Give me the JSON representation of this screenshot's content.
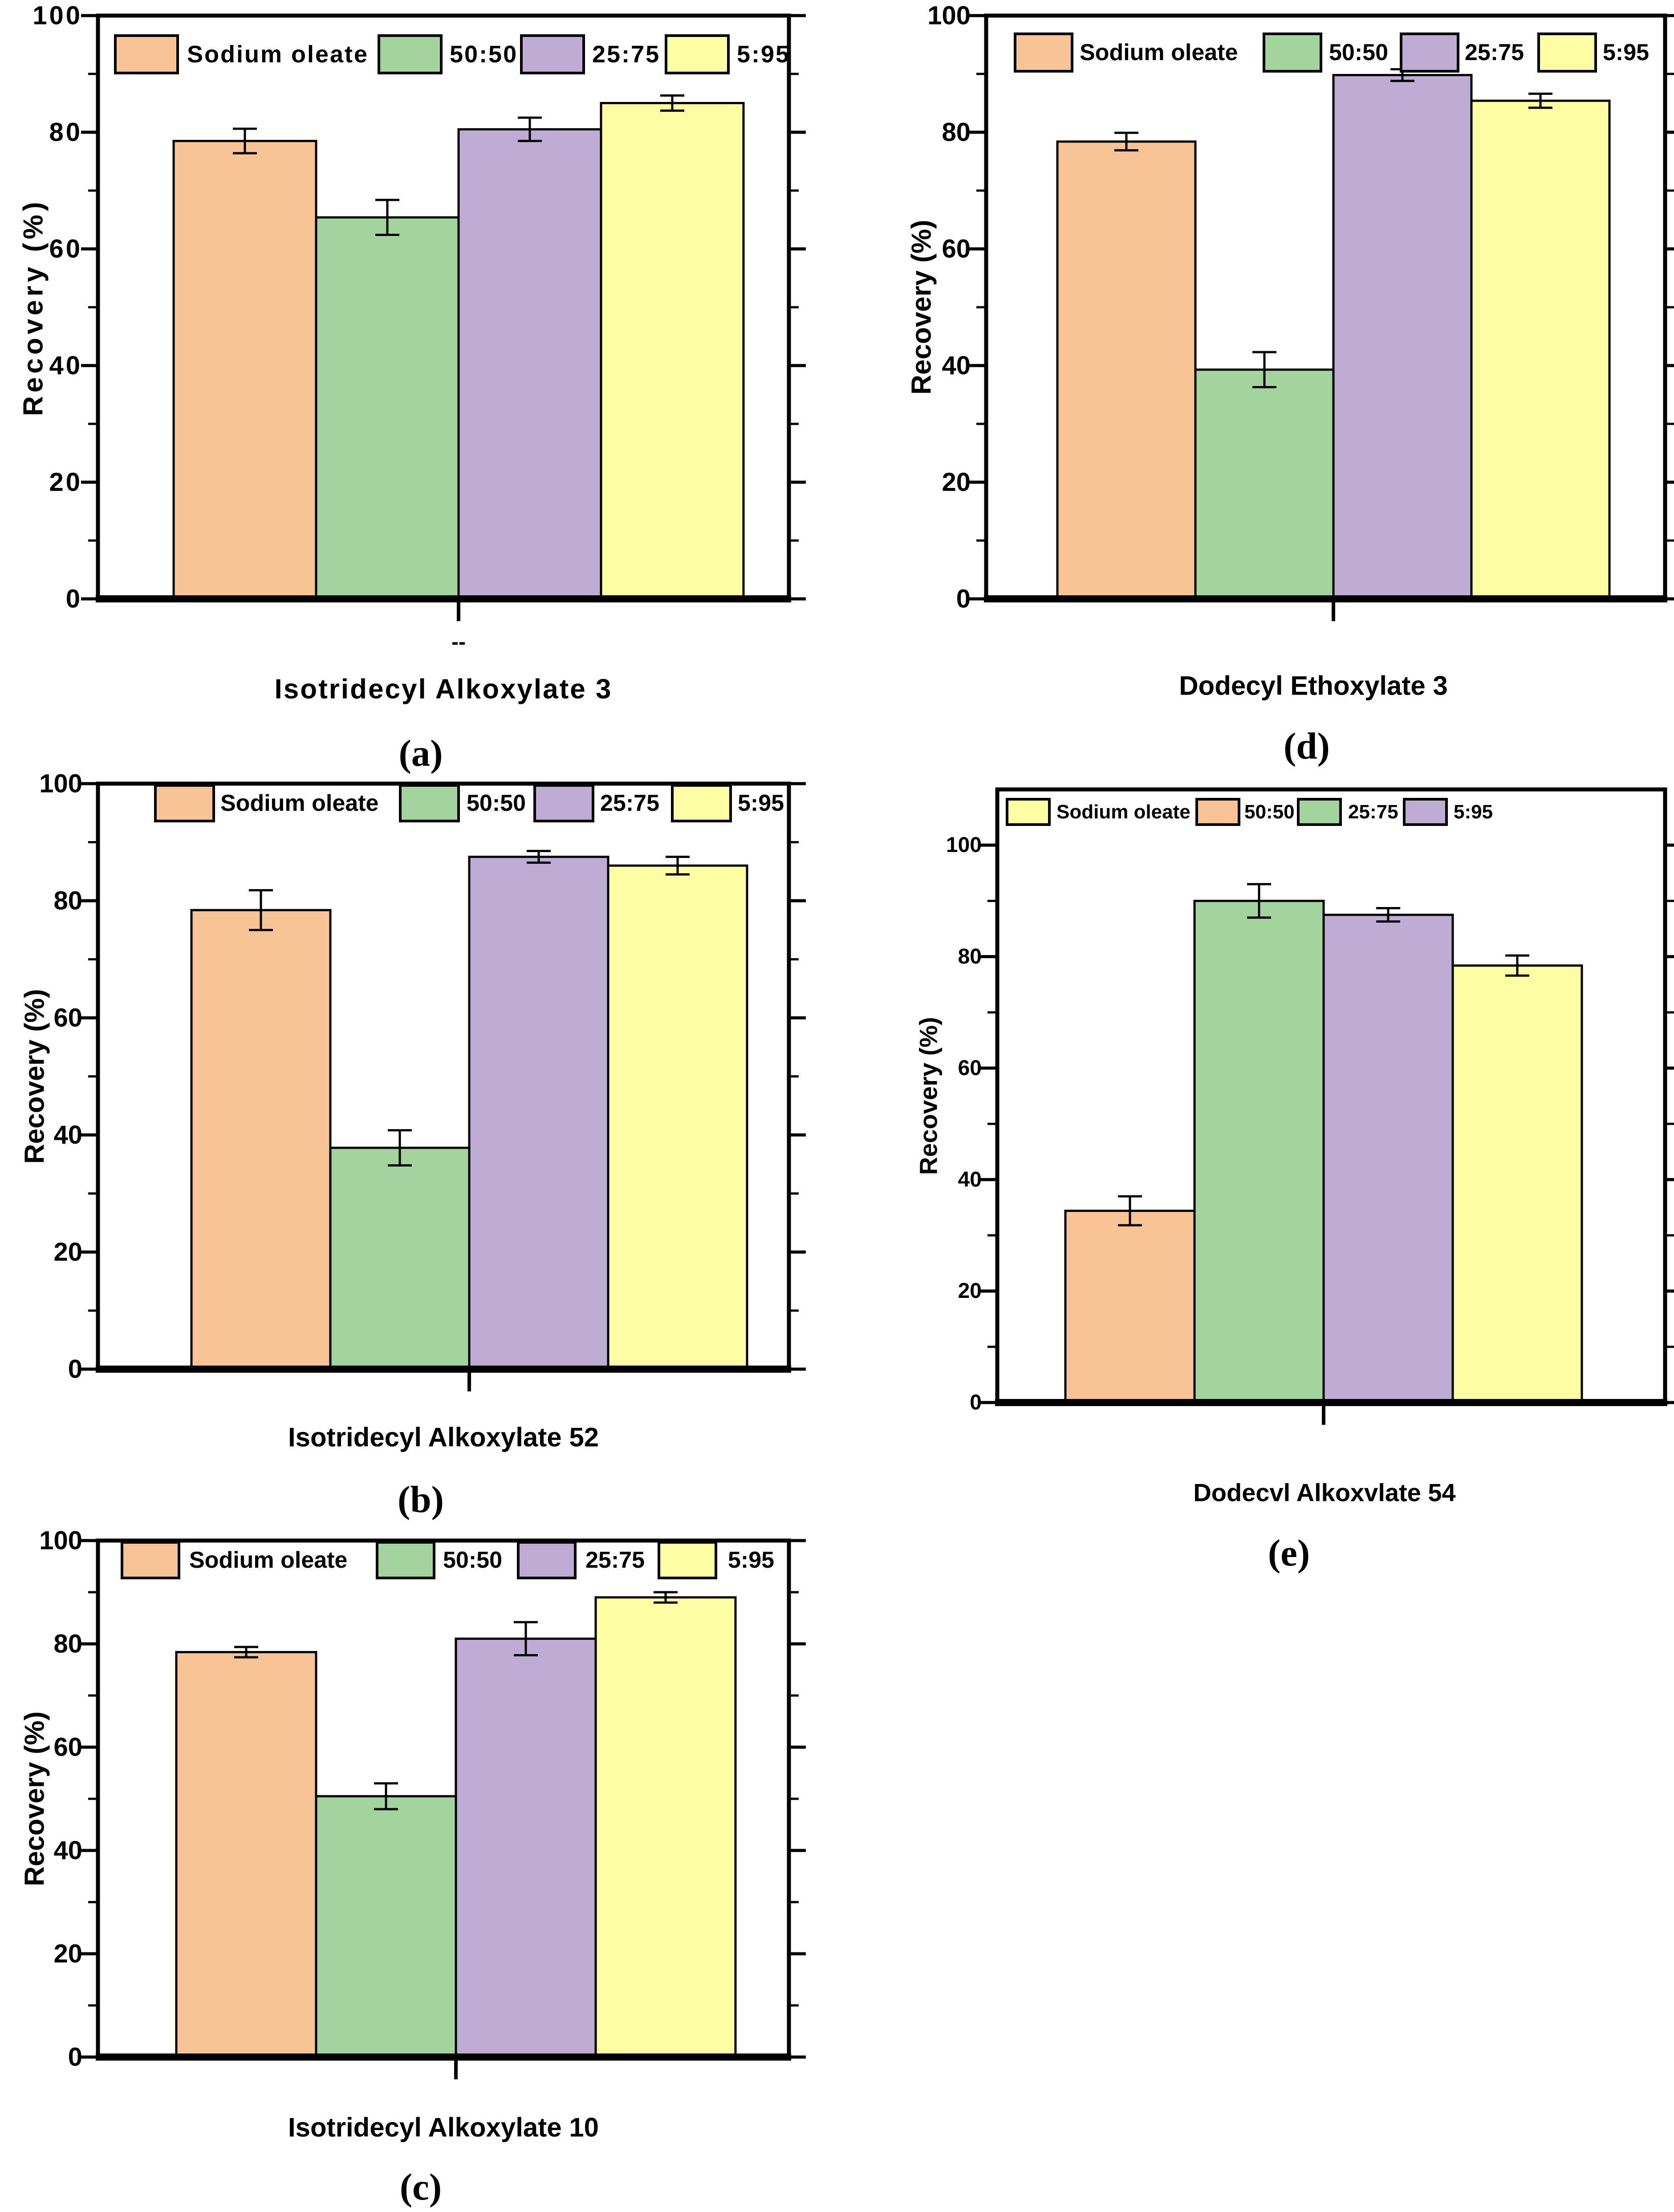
{
  "figure": {
    "background": "#ffffff",
    "palette": {
      "orange": "#F8C395",
      "green": "#A3D49E",
      "purple": "#BEACD4",
      "yellow": "#FDFDA4",
      "outline": "#000000"
    }
  },
  "chart_data": [
    {
      "id": "a",
      "type": "bar",
      "panel_letter": "(a)",
      "title": "Isotridecyl Alkoxylate 3",
      "x_tick_label": "--",
      "ylabel": "Recovery (%)",
      "ylim": [
        0,
        100
      ],
      "yticks": [
        0,
        20,
        40,
        60,
        80,
        100
      ],
      "minor_yticks": [
        10,
        30,
        50,
        70,
        90
      ],
      "grid": "off",
      "legend_position": "top-inside",
      "legend": [
        {
          "label": "Sodium oleate",
          "color": "orange"
        },
        {
          "label": "50:50",
          "color": "green"
        },
        {
          "label": "25:75",
          "color": "purple"
        },
        {
          "label": "5:95",
          "color": "yellow"
        }
      ],
      "bars": [
        {
          "label": "Sodium oleate",
          "color": "orange",
          "value": 78.5,
          "error": 2.1
        },
        {
          "label": "50:50",
          "color": "green",
          "value": 65.4,
          "error": 3.0
        },
        {
          "label": "25:75",
          "color": "purple",
          "value": 80.5,
          "error": 2.0
        },
        {
          "label": "5:95",
          "color": "yellow",
          "value": 85.0,
          "error": 1.3
        }
      ]
    },
    {
      "id": "b",
      "type": "bar",
      "panel_letter": "(b)",
      "title": "Isotridecyl Alkoxylate 52",
      "x_tick_label": "",
      "ylabel": "Recovery (%)",
      "ylim": [
        0,
        100
      ],
      "yticks": [
        0,
        20,
        40,
        60,
        80,
        100
      ],
      "minor_yticks": [
        10,
        30,
        50,
        70,
        90
      ],
      "grid": "off",
      "legend_position": "top-inside",
      "legend": [
        {
          "label": "Sodium oleate",
          "color": "orange"
        },
        {
          "label": "50:50",
          "color": "green"
        },
        {
          "label": "25:75",
          "color": "purple"
        },
        {
          "label": "5:95",
          "color": "yellow"
        }
      ],
      "bars": [
        {
          "label": "Sodium oleate",
          "color": "orange",
          "value": 78.4,
          "error": 3.4
        },
        {
          "label": "50:50",
          "color": "green",
          "value": 37.8,
          "error": 3.0
        },
        {
          "label": "25:75",
          "color": "purple",
          "value": 87.5,
          "error": 1.0
        },
        {
          "label": "5:95",
          "color": "yellow",
          "value": 86.0,
          "error": 1.5
        }
      ]
    },
    {
      "id": "c",
      "type": "bar",
      "panel_letter": "(c)",
      "title": "Isotridecyl Alkoxylate 10",
      "x_tick_label": "",
      "ylabel": "Recovery (%)",
      "ylim": [
        0,
        100
      ],
      "yticks": [
        0,
        20,
        40,
        60,
        80,
        100
      ],
      "minor_yticks": [
        10,
        30,
        50,
        70,
        90
      ],
      "grid": "off",
      "legend_position": "top-inside",
      "legend": [
        {
          "label": "Sodium oleate",
          "color": "orange"
        },
        {
          "label": "50:50",
          "color": "green"
        },
        {
          "label": "25:75",
          "color": "purple"
        },
        {
          "label": "5:95",
          "color": "yellow"
        }
      ],
      "bars": [
        {
          "label": "Sodium oleate",
          "color": "orange",
          "value": 78.4,
          "error": 1.0
        },
        {
          "label": "50:50",
          "color": "green",
          "value": 50.5,
          "error": 2.5
        },
        {
          "label": "25:75",
          "color": "purple",
          "value": 81.0,
          "error": 3.2
        },
        {
          "label": "5:95",
          "color": "yellow",
          "value": 89.0,
          "error": 1.0
        }
      ]
    },
    {
      "id": "d",
      "type": "bar",
      "panel_letter": "(d)",
      "title": "Dodecyl Ethoxylate 3",
      "x_tick_label": "",
      "ylabel": "Recovery (%)",
      "ylim": [
        0,
        100
      ],
      "yticks": [
        0,
        20,
        40,
        60,
        80,
        100
      ],
      "minor_yticks": [
        10,
        30,
        50,
        70,
        90
      ],
      "grid": "off",
      "legend_position": "top-inside",
      "legend": [
        {
          "label": "Sodium oleate",
          "color": "orange"
        },
        {
          "label": "50:50",
          "color": "green"
        },
        {
          "label": "25:75",
          "color": "purple"
        },
        {
          "label": "5:95",
          "color": "yellow"
        }
      ],
      "bars": [
        {
          "label": "Sodium oleate",
          "color": "orange",
          "value": 78.4,
          "error": 1.5
        },
        {
          "label": "50:50",
          "color": "green",
          "value": 39.3,
          "error": 3.0
        },
        {
          "label": "25:75",
          "color": "purple",
          "value": 89.8,
          "error": 1.0
        },
        {
          "label": "5:95",
          "color": "yellow",
          "value": 85.4,
          "error": 1.2
        }
      ]
    },
    {
      "id": "e",
      "type": "bar",
      "panel_letter": "(e)",
      "title": "Dodecvl Alkoxvlate 54",
      "x_tick_label": "",
      "ylabel": "Recovery (%)",
      "ylim": [
        0,
        110
      ],
      "yticks": [
        0,
        20,
        40,
        60,
        80,
        100
      ],
      "minor_yticks": [
        10,
        30,
        50,
        70,
        90
      ],
      "grid": "off",
      "legend_position": "top-inside",
      "legend": [
        {
          "label": "Sodium oleate",
          "color": "yellow"
        },
        {
          "label": "50:50",
          "color": "orange"
        },
        {
          "label": "25:75",
          "color": "green"
        },
        {
          "label": "5:95",
          "color": "purple"
        }
      ],
      "bars": [
        {
          "label": "50:50",
          "color": "orange",
          "value": 34.4,
          "error": 2.6
        },
        {
          "label": "25:75",
          "color": "green",
          "value": 90.0,
          "error": 3.0
        },
        {
          "label": "5:95",
          "color": "purple",
          "value": 87.5,
          "error": 1.2
        },
        {
          "label": "Sodium oleate",
          "color": "yellow",
          "value": 78.4,
          "error": 1.8
        }
      ]
    }
  ]
}
